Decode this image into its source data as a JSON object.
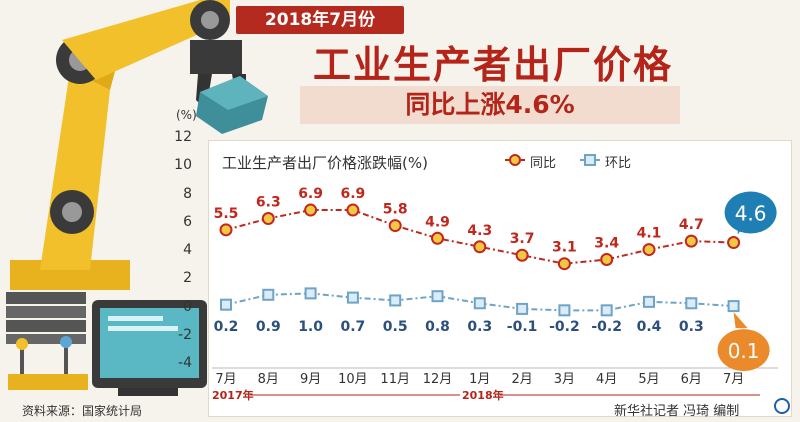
{
  "header": {
    "badge": "2018年7月份",
    "title": "工业生产者出厂价格",
    "subtitle": "同比上涨4.6%"
  },
  "source": "资料来源：国家统计局",
  "credit": "新华社记者 冯琦 编制",
  "colors": {
    "yoy": "#c0281e",
    "mom": "#6fa3c6",
    "callout_yoy": "#1f7fb5",
    "callout_mom": "#ea8a2b",
    "accent": "#b42418"
  },
  "chart_data": {
    "type": "line",
    "title": "工业生产者出厂价格涨跌幅(%)",
    "ylabel": "(%)",
    "ylim": [
      -4,
      12
    ],
    "yticks": [
      "12",
      "10",
      "8",
      "6",
      "4",
      "2",
      "0",
      "-2",
      "-4"
    ],
    "categories": [
      "7月",
      "8月",
      "9月",
      "10月",
      "11月",
      "12月",
      "1月",
      "2月",
      "3月",
      "4月",
      "5月",
      "6月",
      "7月"
    ],
    "year_labels": [
      "2017年",
      "2018年"
    ],
    "series": [
      {
        "name": "同比",
        "values": [
          5.5,
          6.3,
          6.9,
          6.9,
          5.8,
          4.9,
          4.3,
          3.7,
          3.1,
          3.4,
          4.1,
          4.7,
          4.6
        ],
        "labels": [
          "5.5",
          "6.3",
          "6.9",
          "6.9",
          "5.8",
          "4.9",
          "4.3",
          "3.7",
          "3.1",
          "3.4",
          "4.1",
          "4.7",
          "4.6"
        ]
      },
      {
        "name": "环比",
        "values": [
          0.2,
          0.9,
          1.0,
          0.7,
          0.5,
          0.8,
          0.3,
          -0.1,
          -0.2,
          -0.2,
          0.4,
          0.3,
          0.1
        ],
        "labels": [
          "0.2",
          "0.9",
          "1.0",
          "0.7",
          "0.5",
          "0.8",
          "0.3",
          "-0.1",
          "-0.2",
          "-0.2",
          "0.4",
          "0.3",
          "0.1"
        ]
      }
    ],
    "legend": "top-right"
  }
}
